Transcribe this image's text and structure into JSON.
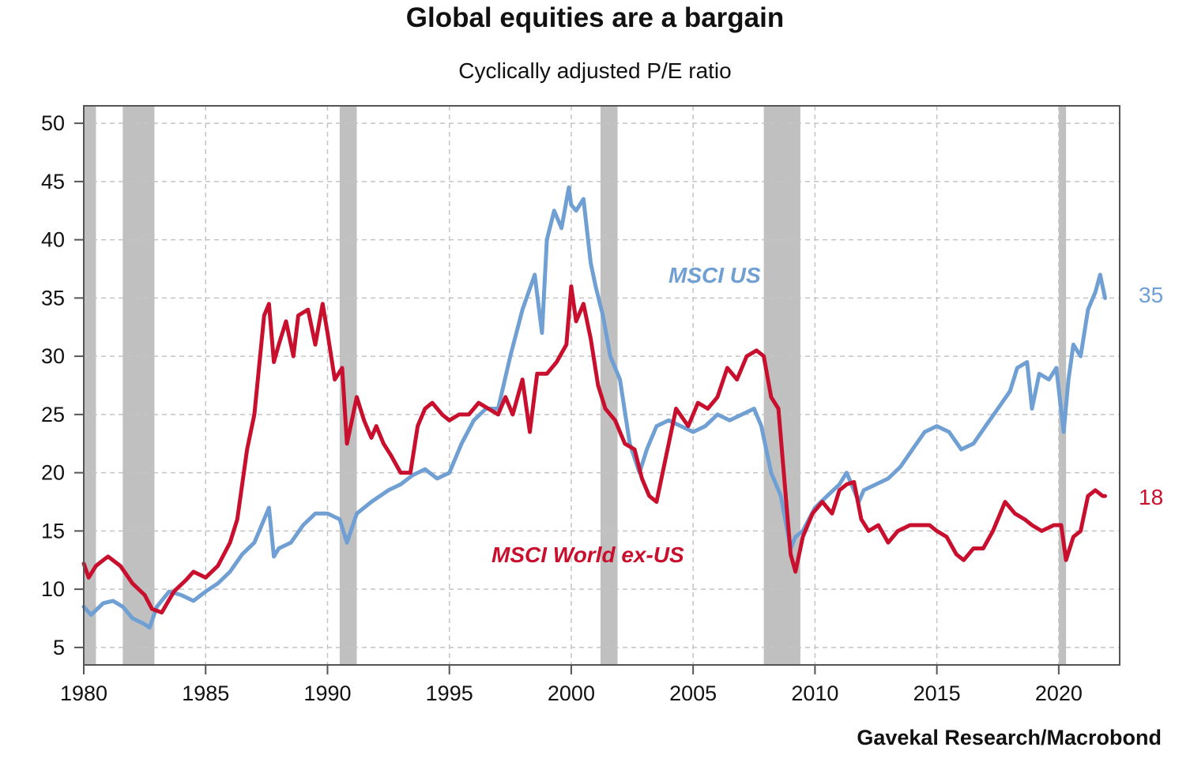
{
  "chart_data": {
    "type": "line",
    "title": "Global equities are a bargain",
    "subtitle": "Cyclically adjusted P/E ratio",
    "source": "Gavekal Research/Macrobond",
    "xlabel": "",
    "ylabel": "",
    "xlim": [
      1980,
      2022.5
    ],
    "ylim": [
      3.5,
      51.5
    ],
    "x_ticks": [
      1980,
      1985,
      1990,
      1995,
      2000,
      2005,
      2010,
      2015,
      2020
    ],
    "y_ticks": [
      5,
      10,
      15,
      20,
      25,
      30,
      35,
      40,
      45,
      50
    ],
    "grid": true,
    "recessions": [
      [
        1980.0,
        1980.5
      ],
      [
        1981.6,
        1982.9
      ],
      [
        1990.5,
        1991.2
      ],
      [
        2001.2,
        2001.9
      ],
      [
        2007.9,
        2009.4
      ],
      [
        2020.0,
        2020.3
      ]
    ],
    "recession_color": "#c0c0c0",
    "series": [
      {
        "name": "MSCI US",
        "color": "#6f9fd3",
        "end_label": "35",
        "x": [
          1980.0,
          1980.3,
          1980.8,
          1981.2,
          1981.6,
          1982.0,
          1982.5,
          1982.7,
          1983.0,
          1983.5,
          1984.0,
          1984.5,
          1985.0,
          1985.5,
          1986.0,
          1986.5,
          1987.0,
          1987.3,
          1987.6,
          1987.8,
          1988.0,
          1988.5,
          1989.0,
          1989.5,
          1990.0,
          1990.5,
          1990.8,
          1991.2,
          1991.8,
          1992.5,
          1993.0,
          1993.5,
          1994.0,
          1994.5,
          1995.0,
          1995.5,
          1996.0,
          1996.5,
          1997.0,
          1997.5,
          1998.0,
          1998.5,
          1998.8,
          1999.0,
          1999.3,
          1999.6,
          1999.9,
          2000.0,
          2000.2,
          2000.5,
          2000.8,
          2001.0,
          2001.3,
          2001.6,
          2002.0,
          2002.4,
          2002.8,
          2003.1,
          2003.5,
          2004.0,
          2004.5,
          2005.0,
          2005.5,
          2006.0,
          2006.5,
          2007.0,
          2007.5,
          2007.8,
          2008.2,
          2008.6,
          2009.0,
          2009.2,
          2009.5,
          2010.0,
          2010.5,
          2011.0,
          2011.3,
          2011.8,
          2012.0,
          2012.5,
          2013.0,
          2013.5,
          2014.0,
          2014.5,
          2015.0,
          2015.5,
          2016.0,
          2016.5,
          2017.0,
          2017.5,
          2018.0,
          2018.3,
          2018.7,
          2018.9,
          2019.2,
          2019.6,
          2019.9,
          2020.2,
          2020.4,
          2020.6,
          2020.9,
          2021.2,
          2021.5,
          2021.7,
          2021.9
        ],
        "y": [
          8.5,
          7.8,
          8.8,
          9.0,
          8.5,
          7.5,
          7.0,
          6.7,
          8.5,
          9.8,
          9.5,
          9.0,
          9.8,
          10.5,
          11.5,
          13.0,
          14.0,
          15.5,
          17.0,
          12.8,
          13.5,
          14.0,
          15.5,
          16.5,
          16.5,
          16.0,
          14.0,
          16.5,
          17.5,
          18.5,
          19.0,
          19.8,
          20.3,
          19.5,
          20.0,
          22.5,
          24.5,
          25.5,
          25.5,
          30.0,
          34.0,
          37.0,
          32.0,
          40.0,
          42.5,
          41.0,
          44.5,
          43.0,
          42.5,
          43.5,
          38.0,
          36.0,
          33.5,
          30.0,
          28.0,
          22.5,
          20.0,
          22.0,
          24.0,
          24.5,
          24.0,
          23.5,
          24.0,
          25.0,
          24.5,
          25.0,
          25.5,
          24.0,
          20.0,
          18.0,
          13.5,
          14.5,
          15.0,
          17.0,
          18.0,
          19.0,
          20.0,
          17.5,
          18.5,
          19.0,
          19.5,
          20.5,
          22.0,
          23.5,
          24.0,
          23.5,
          22.0,
          22.5,
          24.0,
          25.5,
          27.0,
          29.0,
          29.5,
          25.5,
          28.5,
          28.0,
          29.0,
          23.5,
          28.0,
          31.0,
          30.0,
          34.0,
          35.5,
          37.0,
          35.0
        ]
      },
      {
        "name": "MSCI World ex-US",
        "color": "#c8102e",
        "end_label": "18",
        "x": [
          1980.0,
          1980.2,
          1980.5,
          1980.8,
          1981.0,
          1981.5,
          1982.0,
          1982.5,
          1982.8,
          1983.2,
          1983.7,
          1984.2,
          1984.5,
          1985.0,
          1985.5,
          1986.0,
          1986.3,
          1986.7,
          1987.0,
          1987.4,
          1987.6,
          1987.8,
          1988.0,
          1988.3,
          1988.6,
          1988.8,
          1989.2,
          1989.5,
          1989.8,
          1990.0,
          1990.3,
          1990.6,
          1990.8,
          1991.2,
          1991.5,
          1991.8,
          1992.0,
          1992.3,
          1992.6,
          1993.0,
          1993.4,
          1993.7,
          1994.0,
          1994.3,
          1994.7,
          1995.0,
          1995.4,
          1995.8,
          1996.2,
          1996.6,
          1997.0,
          1997.3,
          1997.6,
          1998.0,
          1998.3,
          1998.6,
          1999.0,
          1999.4,
          1999.8,
          2000.0,
          2000.2,
          2000.5,
          2000.8,
          2001.1,
          2001.4,
          2001.8,
          2002.2,
          2002.6,
          2002.9,
          2003.2,
          2003.5,
          2003.9,
          2004.3,
          2004.8,
          2005.2,
          2005.6,
          2006.0,
          2006.4,
          2006.8,
          2007.2,
          2007.6,
          2007.9,
          2008.2,
          2008.5,
          2008.8,
          2009.0,
          2009.2,
          2009.5,
          2009.9,
          2010.3,
          2010.7,
          2011.0,
          2011.3,
          2011.6,
          2011.9,
          2012.2,
          2012.6,
          2013.0,
          2013.4,
          2013.9,
          2014.3,
          2014.7,
          2015.0,
          2015.4,
          2015.8,
          2016.1,
          2016.5,
          2016.9,
          2017.3,
          2017.8,
          2018.2,
          2018.6,
          2018.9,
          2019.3,
          2019.8,
          2020.1,
          2020.3,
          2020.6,
          2020.9,
          2021.2,
          2021.5,
          2021.8,
          2021.9
        ],
        "y": [
          12.2,
          11.0,
          12.0,
          12.5,
          12.8,
          12.0,
          10.5,
          9.5,
          8.3,
          8.0,
          9.8,
          10.8,
          11.5,
          11.0,
          12.0,
          14.0,
          16.0,
          22.0,
          25.0,
          33.5,
          34.5,
          29.5,
          31.0,
          33.0,
          30.0,
          33.5,
          34.0,
          31.0,
          34.5,
          32.0,
          28.0,
          29.0,
          22.5,
          26.5,
          24.5,
          23.0,
          24.0,
          22.5,
          21.5,
          20.0,
          20.0,
          24.0,
          25.5,
          26.0,
          25.0,
          24.5,
          25.0,
          25.0,
          26.0,
          25.5,
          25.0,
          26.5,
          25.0,
          28.0,
          23.5,
          28.5,
          28.5,
          29.5,
          31.0,
          36.0,
          33.0,
          34.5,
          31.5,
          27.5,
          25.5,
          24.5,
          22.5,
          22.0,
          19.5,
          18.0,
          17.5,
          21.5,
          25.5,
          24.0,
          26.0,
          25.5,
          26.5,
          29.0,
          28.0,
          30.0,
          30.5,
          30.0,
          26.5,
          25.5,
          18.0,
          13.0,
          11.5,
          14.5,
          16.5,
          17.5,
          16.5,
          18.5,
          19.0,
          19.2,
          16.0,
          15.0,
          15.5,
          14.0,
          15.0,
          15.5,
          15.5,
          15.5,
          15.0,
          14.5,
          13.0,
          12.5,
          13.5,
          13.5,
          15.0,
          17.5,
          16.5,
          16.0,
          15.5,
          15.0,
          15.5,
          15.5,
          12.5,
          14.5,
          15.0,
          18.0,
          18.5,
          18.0,
          18.0
        ]
      }
    ]
  }
}
